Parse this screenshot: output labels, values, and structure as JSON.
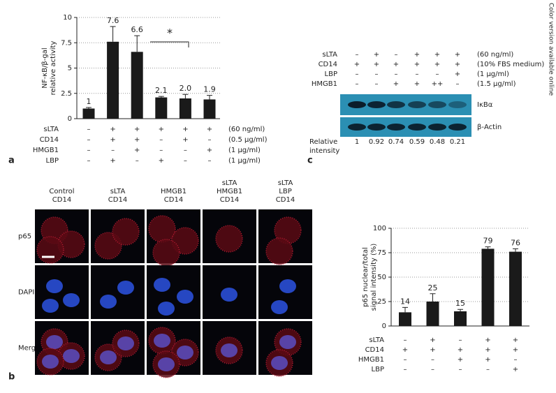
{
  "side_note": "Color version available online",
  "panel_labels": [
    "a",
    "b",
    "c"
  ],
  "chart_data": [
    {
      "type": "bar",
      "ylabel": [
        "NF-κB/β-gal",
        "relative activity"
      ],
      "values": [
        1,
        7.6,
        6.6,
        2.1,
        2.0,
        1.9
      ],
      "value_labels": [
        "1",
        "7.6",
        "6.6",
        "2.1",
        "2.0",
        "1.9"
      ],
      "errors": [
        0.1,
        1.5,
        1.6,
        0.1,
        0.4,
        0.4
      ],
      "color": "#1a1a1a",
      "ylim": [
        0,
        10
      ],
      "yticks": [
        0,
        2.5,
        5,
        7.5,
        10
      ],
      "grid": true,
      "annotation": "*",
      "conditions": [
        {
          "name": "sLTA",
          "marks": [
            "–",
            "+",
            "+",
            "+",
            "+",
            "+"
          ],
          "unit": "(60 ng/ml)"
        },
        {
          "name": "CD14",
          "marks": [
            "–",
            "+",
            "+",
            "–",
            "+",
            "–"
          ],
          "unit": "(0.5 μg/ml)"
        },
        {
          "name": "HMGB1",
          "marks": [
            "–",
            "–",
            "+",
            "–",
            "–",
            "+"
          ],
          "unit": "(1 μg/ml)"
        },
        {
          "name": "LBP",
          "marks": [
            "–",
            "+",
            "–",
            "+",
            "–",
            "–"
          ],
          "unit": "(1 μg/ml)"
        }
      ]
    },
    {
      "type": "bar",
      "ylabel": [
        "p65 nuclear/total",
        "signal intensity (%)"
      ],
      "values": [
        14,
        25,
        15,
        79,
        76
      ],
      "errors": [
        5,
        8,
        2,
        2,
        3
      ],
      "color": "#1a1a1a",
      "ylim": [
        0,
        100
      ],
      "yticks": [
        0,
        25,
        50,
        75,
        100
      ],
      "grid": true,
      "conditions": [
        {
          "name": "sLTA",
          "marks": [
            "–",
            "+",
            "–",
            "+",
            "+"
          ]
        },
        {
          "name": "CD14",
          "marks": [
            "+",
            "+",
            "+",
            "+",
            "+"
          ]
        },
        {
          "name": "HMGB1",
          "marks": [
            "–",
            "–",
            "+",
            "+",
            "–"
          ]
        },
        {
          "name": "LBP",
          "marks": [
            "–",
            "–",
            "–",
            "–",
            "+"
          ]
        }
      ]
    }
  ],
  "blot": {
    "conditions": [
      {
        "name": "sLTA",
        "marks": [
          "–",
          "+",
          "–",
          "+",
          "+",
          "+"
        ],
        "unit": "(60 ng/ml)"
      },
      {
        "name": "CD14",
        "marks": [
          "+",
          "+",
          "+",
          "+",
          "+",
          "+"
        ],
        "unit": "(10% FBS medium)"
      },
      {
        "name": "LBP",
        "marks": [
          "–",
          "–",
          "–",
          "–",
          "–",
          "+"
        ],
        "unit": "(1 μg/ml)"
      },
      {
        "name": "HMGB1",
        "marks": [
          "–",
          "–",
          "+",
          "+",
          "++",
          "–"
        ],
        "unit": "(1.5 μg/ml)"
      }
    ],
    "bands": [
      "IκBα",
      "β-Actin"
    ],
    "intensity_label": [
      "Relative",
      "intensity"
    ],
    "intensity": [
      1,
      0.92,
      0.74,
      0.59,
      0.48,
      0.21
    ]
  },
  "microscopy": {
    "columns": [
      [
        "Control",
        "CD14"
      ],
      [
        "sLTA",
        "CD14"
      ],
      [
        "HMGB1",
        "CD14"
      ],
      [
        "sLTA",
        "HMGB1",
        "CD14"
      ],
      [
        "sLTA",
        "LBP",
        "CD14"
      ]
    ],
    "rows": [
      "p65",
      "DAPI",
      "Merge"
    ]
  }
}
